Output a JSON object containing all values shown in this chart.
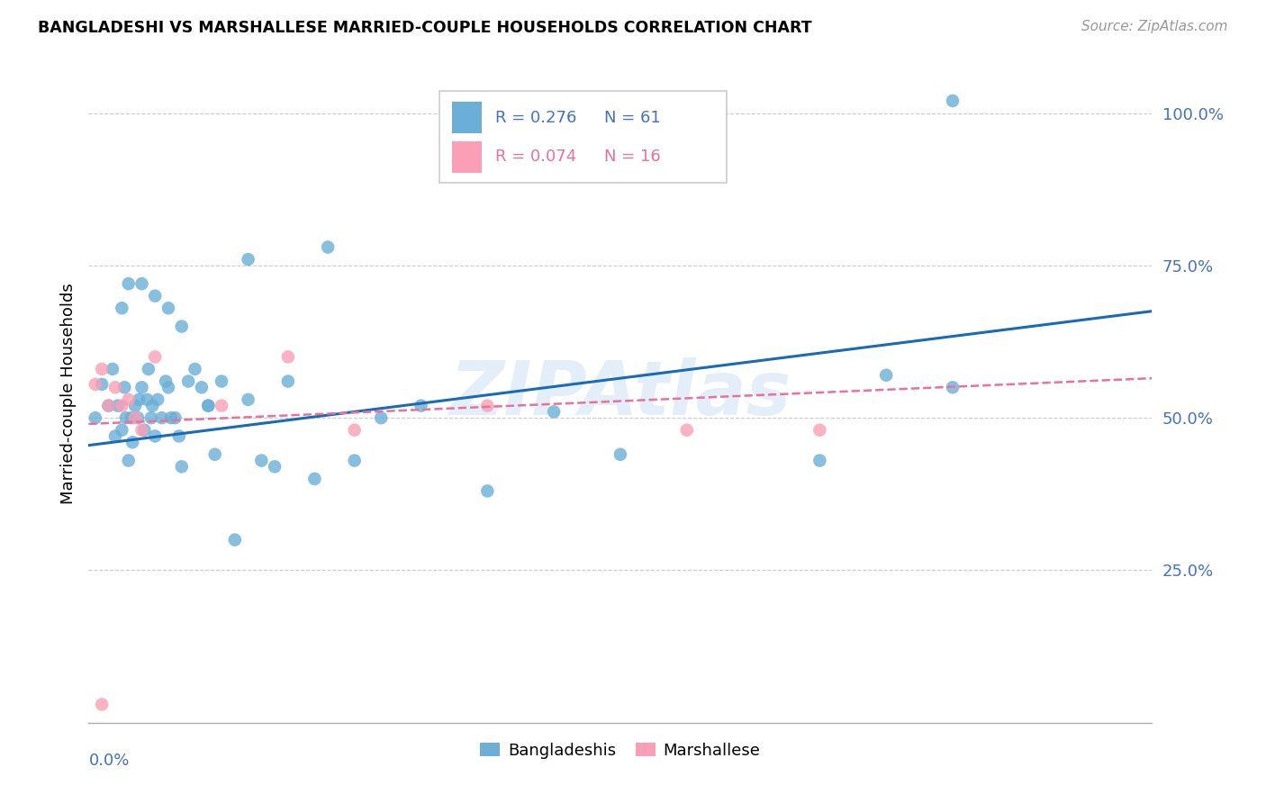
{
  "title": "BANGLADESHI VS MARSHALLESE MARRIED-COUPLE HOUSEHOLDS CORRELATION CHART",
  "source": "Source: ZipAtlas.com",
  "ylabel": "Married-couple Households",
  "xlim": [
    0.0,
    0.8
  ],
  "ylim": [
    0.0,
    1.08
  ],
  "blue_color": "#6baed6",
  "pink_color": "#fa9fb5",
  "trend_blue": "#1a6bb5",
  "trend_pink": "#e8729a",
  "grid_color": "#cccccc",
  "background_color": "#ffffff",
  "tick_color": "#4472c4",
  "ytick_vals": [
    0.0,
    0.25,
    0.5,
    0.75,
    1.0
  ],
  "ytick_labels": [
    "",
    "25.0%",
    "50.0%",
    "75.0%",
    "100.0%"
  ],
  "blue_scatter_x": [
    0.005,
    0.01,
    0.015,
    0.018,
    0.02,
    0.022,
    0.025,
    0.027,
    0.028,
    0.03,
    0.032,
    0.033,
    0.035,
    0.037,
    0.038,
    0.04,
    0.042,
    0.044,
    0.045,
    0.047,
    0.048,
    0.05,
    0.052,
    0.055,
    0.058,
    0.06,
    0.062,
    0.065,
    0.068,
    0.07,
    0.075,
    0.08,
    0.085,
    0.09,
    0.095,
    0.1,
    0.11,
    0.12,
    0.13,
    0.14,
    0.15,
    0.17,
    0.2,
    0.25,
    0.3,
    0.35,
    0.4,
    0.55,
    0.6,
    0.65,
    0.025,
    0.03,
    0.04,
    0.05,
    0.06,
    0.07,
    0.09,
    0.12,
    0.18,
    0.22,
    0.65
  ],
  "blue_scatter_y": [
    0.5,
    0.555,
    0.52,
    0.58,
    0.47,
    0.52,
    0.48,
    0.55,
    0.5,
    0.43,
    0.5,
    0.46,
    0.52,
    0.5,
    0.53,
    0.55,
    0.48,
    0.53,
    0.58,
    0.5,
    0.52,
    0.47,
    0.53,
    0.5,
    0.56,
    0.55,
    0.5,
    0.5,
    0.47,
    0.42,
    0.56,
    0.58,
    0.55,
    0.52,
    0.44,
    0.56,
    0.3,
    0.53,
    0.43,
    0.42,
    0.56,
    0.4,
    0.43,
    0.52,
    0.38,
    0.51,
    0.44,
    0.43,
    0.57,
    0.55,
    0.68,
    0.72,
    0.72,
    0.7,
    0.68,
    0.65,
    0.52,
    0.76,
    0.78,
    0.5,
    1.02
  ],
  "pink_scatter_x": [
    0.005,
    0.01,
    0.015,
    0.02,
    0.025,
    0.03,
    0.035,
    0.04,
    0.05,
    0.1,
    0.15,
    0.2,
    0.3,
    0.45,
    0.55,
    0.01
  ],
  "pink_scatter_y": [
    0.555,
    0.58,
    0.52,
    0.55,
    0.52,
    0.53,
    0.5,
    0.48,
    0.6,
    0.52,
    0.6,
    0.48,
    0.52,
    0.48,
    0.48,
    0.03
  ],
  "blue_trend_x": [
    0.0,
    0.8
  ],
  "blue_trend_y": [
    0.455,
    0.675
  ],
  "pink_trend_x": [
    0.0,
    0.8
  ],
  "pink_trend_y": [
    0.49,
    0.565
  ],
  "legend_r1": "R = 0.276",
  "legend_n1": "N = 61",
  "legend_r2": "R = 0.074",
  "legend_n2": "N = 16",
  "watermark": "ZIPAtlas"
}
